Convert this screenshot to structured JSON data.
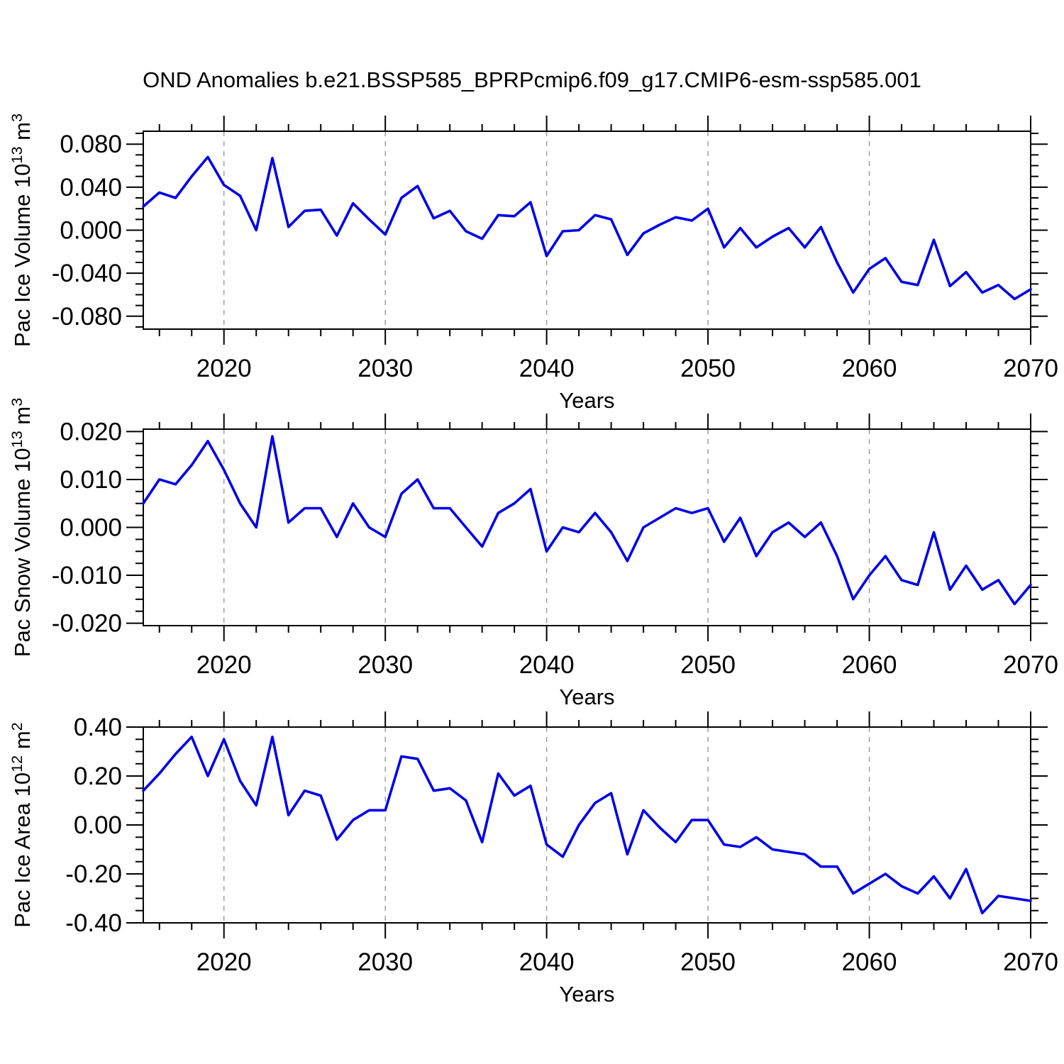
{
  "page": {
    "title": "OND Anomalies b.e21.BSSP585_BPRPcmip6.f09_g17.CMIP6-esm-ssp585.001",
    "background": "#ffffff"
  },
  "chart_data": [
    {
      "type": "line",
      "name": "pac-ice-volume",
      "title": "",
      "ylabel": "Pac Ice Volume 10^{13} m^{3}",
      "xlabel": "Years",
      "legend": "none",
      "grid": "vertical-dashed",
      "xlim": [
        2015,
        2070
      ],
      "ylim": [
        -0.092,
        0.092
      ],
      "x": [
        2015,
        2016,
        2017,
        2018,
        2019,
        2020,
        2021,
        2022,
        2023,
        2024,
        2025,
        2026,
        2027,
        2028,
        2029,
        2030,
        2031,
        2032,
        2033,
        2034,
        2035,
        2036,
        2037,
        2038,
        2039,
        2040,
        2041,
        2042,
        2043,
        2044,
        2045,
        2046,
        2047,
        2048,
        2049,
        2050,
        2051,
        2052,
        2053,
        2054,
        2055,
        2056,
        2057,
        2058,
        2059,
        2060,
        2061,
        2062,
        2063,
        2064,
        2065,
        2066,
        2067,
        2068,
        2069,
        2070
      ],
      "values": [
        0.022,
        0.035,
        0.03,
        0.05,
        0.068,
        0.042,
        0.032,
        0.0,
        0.067,
        0.003,
        0.018,
        0.019,
        -0.005,
        0.025,
        0.01,
        -0.004,
        0.03,
        0.041,
        0.011,
        0.018,
        -0.001,
        -0.008,
        0.014,
        0.013,
        0.026,
        -0.024,
        -0.001,
        0.0,
        0.014,
        0.01,
        -0.023,
        -0.003,
        0.005,
        0.012,
        0.009,
        0.02,
        -0.016,
        0.002,
        -0.016,
        -0.006,
        0.002,
        -0.016,
        0.003,
        -0.03,
        -0.058,
        -0.036,
        -0.026,
        -0.048,
        -0.051,
        -0.009,
        -0.052,
        -0.039,
        -0.058,
        -0.051,
        -0.064,
        -0.055
      ],
      "yticks": {
        "values": [
          0.08,
          0.04,
          0.0,
          -0.04,
          -0.08
        ],
        "labels": [
          "0.080",
          "0.040",
          "0.000",
          "-0.040",
          "-0.080"
        ],
        "minor_step": 0.01
      },
      "xticks": {
        "values": [
          2020,
          2030,
          2040,
          2050,
          2060,
          2070
        ],
        "labels": [
          "2020",
          "2030",
          "2040",
          "2050",
          "2060",
          "2070"
        ],
        "minor_step": 2
      },
      "grid_x": [
        2020,
        2030,
        2040,
        2050,
        2060
      ],
      "line_color": "#0000e8",
      "grid_color": "#999999",
      "axis_color": "#000000"
    },
    {
      "type": "line",
      "name": "pac-snow-volume",
      "title": "",
      "ylabel": "Pac Snow Volume 10^{13} m^{3}",
      "xlabel": "Years",
      "legend": "none",
      "grid": "vertical-dashed",
      "xlim": [
        2015,
        2070
      ],
      "ylim": [
        -0.0205,
        0.0205
      ],
      "x": [
        2015,
        2016,
        2017,
        2018,
        2019,
        2020,
        2021,
        2022,
        2023,
        2024,
        2025,
        2026,
        2027,
        2028,
        2029,
        2030,
        2031,
        2032,
        2033,
        2034,
        2035,
        2036,
        2037,
        2038,
        2039,
        2040,
        2041,
        2042,
        2043,
        2044,
        2045,
        2046,
        2047,
        2048,
        2049,
        2050,
        2051,
        2052,
        2053,
        2054,
        2055,
        2056,
        2057,
        2058,
        2059,
        2060,
        2061,
        2062,
        2063,
        2064,
        2065,
        2066,
        2067,
        2068,
        2069,
        2070
      ],
      "values": [
        0.005,
        0.01,
        0.009,
        0.013,
        0.018,
        0.012,
        0.005,
        0.0,
        0.019,
        0.001,
        0.004,
        0.004,
        -0.002,
        0.005,
        0.0,
        -0.002,
        0.007,
        0.01,
        0.004,
        0.004,
        0.0,
        -0.004,
        0.003,
        0.005,
        0.008,
        -0.005,
        0.0,
        -0.001,
        0.003,
        -0.001,
        -0.007,
        0.0,
        0.002,
        0.004,
        0.003,
        0.004,
        -0.003,
        0.002,
        -0.006,
        -0.001,
        0.001,
        -0.002,
        0.001,
        -0.006,
        -0.015,
        -0.01,
        -0.006,
        -0.011,
        -0.012,
        -0.001,
        -0.013,
        -0.008,
        -0.013,
        -0.011,
        -0.016,
        -0.012
      ],
      "yticks": {
        "values": [
          0.02,
          0.01,
          0.0,
          -0.01,
          -0.02
        ],
        "labels": [
          "0.020",
          "0.010",
          "0.000",
          "-0.010",
          "-0.020"
        ],
        "minor_step": 0.0025
      },
      "xticks": {
        "values": [
          2020,
          2030,
          2040,
          2050,
          2060,
          2070
        ],
        "labels": [
          "2020",
          "2030",
          "2040",
          "2050",
          "2060",
          "2070"
        ],
        "minor_step": 2
      },
      "grid_x": [
        2020,
        2030,
        2040,
        2050,
        2060
      ],
      "line_color": "#0000e8",
      "grid_color": "#999999",
      "axis_color": "#000000"
    },
    {
      "type": "line",
      "name": "pac-ice-area",
      "title": "",
      "ylabel": "Pac Ice Area 10^{12} m^{2}",
      "xlabel": "Years",
      "legend": "none",
      "grid": "vertical-dashed",
      "xlim": [
        2015,
        2070
      ],
      "ylim": [
        -0.4,
        0.4
      ],
      "x": [
        2015,
        2016,
        2017,
        2018,
        2019,
        2020,
        2021,
        2022,
        2023,
        2024,
        2025,
        2026,
        2027,
        2028,
        2029,
        2030,
        2031,
        2032,
        2033,
        2034,
        2035,
        2036,
        2037,
        2038,
        2039,
        2040,
        2041,
        2042,
        2043,
        2044,
        2045,
        2046,
        2047,
        2048,
        2049,
        2050,
        2051,
        2052,
        2053,
        2054,
        2055,
        2056,
        2057,
        2058,
        2059,
        2060,
        2061,
        2062,
        2063,
        2064,
        2065,
        2066,
        2067,
        2068,
        2069,
        2070
      ],
      "values": [
        0.14,
        0.21,
        0.29,
        0.36,
        0.2,
        0.35,
        0.18,
        0.08,
        0.36,
        0.04,
        0.14,
        0.12,
        -0.06,
        0.02,
        0.06,
        0.06,
        0.28,
        0.27,
        0.14,
        0.15,
        0.1,
        -0.07,
        0.21,
        0.12,
        0.16,
        -0.08,
        -0.13,
        0.0,
        0.09,
        0.13,
        -0.12,
        0.06,
        -0.01,
        -0.07,
        0.02,
        0.02,
        -0.08,
        -0.09,
        -0.05,
        -0.1,
        -0.11,
        -0.12,
        -0.17,
        -0.17,
        -0.28,
        -0.24,
        -0.2,
        -0.25,
        -0.28,
        -0.21,
        -0.3,
        -0.18,
        -0.36,
        -0.29,
        -0.3,
        -0.31
      ],
      "yticks": {
        "values": [
          0.4,
          0.2,
          0.0,
          -0.2,
          -0.4
        ],
        "labels": [
          "0.40",
          "0.20",
          "0.00",
          "-0.20",
          "-0.40"
        ],
        "minor_step": 0.05
      },
      "xticks": {
        "values": [
          2020,
          2030,
          2040,
          2050,
          2060,
          2070
        ],
        "labels": [
          "2020",
          "2030",
          "2040",
          "2050",
          "2060",
          "2070"
        ],
        "minor_step": 2
      },
      "grid_x": [
        2020,
        2030,
        2040,
        2050,
        2060
      ],
      "line_color": "#0000e8",
      "grid_color": "#999999",
      "axis_color": "#000000"
    }
  ]
}
